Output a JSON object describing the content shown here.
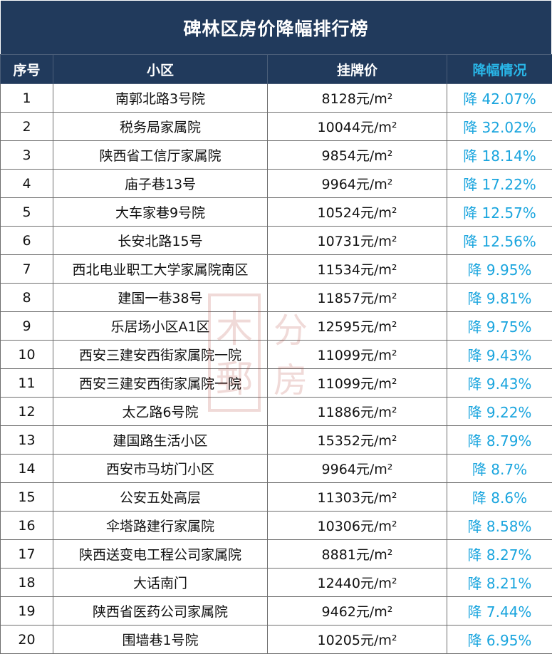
{
  "title": "碑林区房价降幅排行榜",
  "columns": [
    "序号",
    "小区",
    "挂牌价",
    "降幅情况"
  ],
  "accent": "#29b6e8",
  "header_bg": "#213a5c",
  "rows": [
    {
      "rank": "1",
      "name": "南郭北路3号院",
      "price": "8128元/m²",
      "drop": "降 42.07%"
    },
    {
      "rank": "2",
      "name": "税务局家属院",
      "price": "10044元/m²",
      "drop": "降 32.02%"
    },
    {
      "rank": "3",
      "name": "陕西省工信厅家属院",
      "price": "9854元/m²",
      "drop": "降 18.14%"
    },
    {
      "rank": "4",
      "name": "庙子巷13号",
      "price": "9964元/m²",
      "drop": "降 17.22%"
    },
    {
      "rank": "5",
      "name": "大车家巷9号院",
      "price": "10524元/m²",
      "drop": "降 12.57%"
    },
    {
      "rank": "6",
      "name": "长安北路15号",
      "price": "10731元/m²",
      "drop": "降 12.56%"
    },
    {
      "rank": "7",
      "name": "西北电业职工大学家属院南区",
      "price": "11534元/m²",
      "drop": "降 9.95%"
    },
    {
      "rank": "8",
      "name": "建国一巷38号",
      "price": "11857元/m²",
      "drop": "降 9.81%"
    },
    {
      "rank": "9",
      "name": "乐居场小区A1区",
      "price": "12595元/m²",
      "drop": "降 9.75%"
    },
    {
      "rank": "10",
      "name": "西安三建安西街家属院一院",
      "price": "11099元/m²",
      "drop": "降 9.43%"
    },
    {
      "rank": "11",
      "name": "西安三建安西街家属院一院",
      "price": "11099元/m²",
      "drop": "降 9.43%"
    },
    {
      "rank": "12",
      "name": "太乙路6号院",
      "price": "11886元/m²",
      "drop": "降 9.22%"
    },
    {
      "rank": "13",
      "name": "建国路生活小区",
      "price": "15352元/m²",
      "drop": "降 8.79%"
    },
    {
      "rank": "14",
      "name": "西安市马坊门小区",
      "price": "9964元/m²",
      "drop": "降 8.7%"
    },
    {
      "rank": "15",
      "name": "公安五处高层",
      "price": "11303元/m²",
      "drop": "降 8.6%"
    },
    {
      "rank": "16",
      "name": "伞塔路建行家属院",
      "price": "10306元/m²",
      "drop": "降 8.58%"
    },
    {
      "rank": "17",
      "name": "陕西送变电工程公司家属院",
      "price": "8881元/m²",
      "drop": "降 8.27%"
    },
    {
      "rank": "18",
      "name": "大话南门",
      "price": "12440元/m²",
      "drop": "降 8.21%"
    },
    {
      "rank": "19",
      "name": "陕西省医药公司家属院",
      "price": "9462元/m²",
      "drop": "降 7.44%"
    },
    {
      "rank": "20",
      "name": "围墙巷1号院",
      "price": "10205元/m²",
      "drop": "降 6.95%"
    }
  ]
}
